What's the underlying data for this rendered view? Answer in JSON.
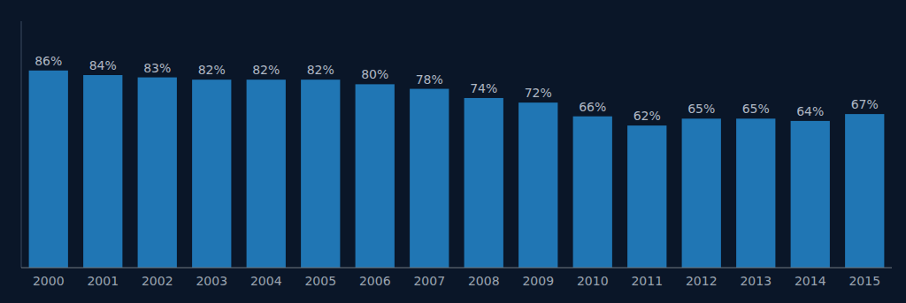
{
  "chart_data": {
    "type": "bar",
    "categories": [
      "2000",
      "2001",
      "2002",
      "2003",
      "2004",
      "2005",
      "2006",
      "2007",
      "2008",
      "2009",
      "2010",
      "2011",
      "2012",
      "2013",
      "2014",
      "2015"
    ],
    "values": [
      86,
      84,
      83,
      82,
      82,
      82,
      80,
      78,
      74,
      72,
      66,
      62,
      65,
      65,
      64,
      67
    ],
    "value_labels": [
      "86%",
      "84%",
      "83%",
      "82%",
      "82%",
      "82%",
      "80%",
      "78%",
      "74%",
      "72%",
      "66%",
      "62%",
      "65%",
      "65%",
      "64%",
      "67%"
    ],
    "data_labels": true,
    "color": "#2076B4",
    "ylim": [
      0,
      107.5
    ],
    "tick_labels": "x",
    "grid": false
  }
}
